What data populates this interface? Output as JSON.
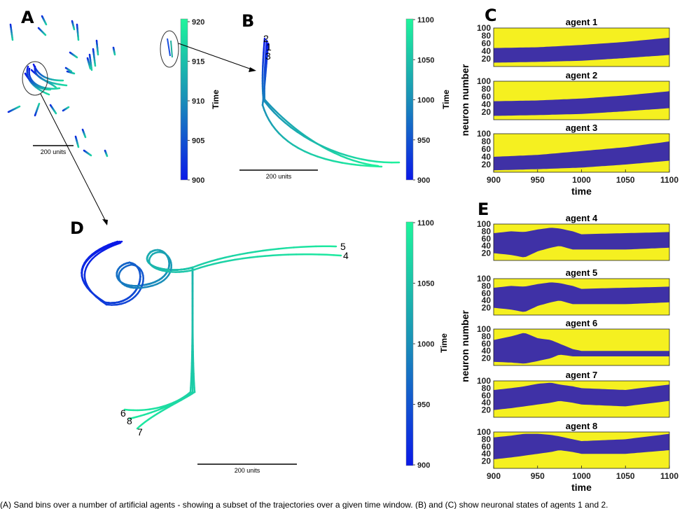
{
  "figure": {
    "panels": [
      "A",
      "B",
      "C",
      "D",
      "E"
    ],
    "caption_fragment": "(A) Sand bins over a number of artificial agents - showing a subset of the trajectories over a given time window. (B) and (C) show neuronal states of agents 1 and 2."
  },
  "colors": {
    "traj_low": "#0a18e8",
    "traj_mid": "#1a8fb8",
    "traj_high": "#1ef59c",
    "raster_on": "#f5f020",
    "raster_off": "#3f31a6"
  },
  "chart_data": [
    {
      "id": "A",
      "type": "line",
      "title": "",
      "scale_bar": "200 units",
      "colorbar": {
        "label": "Time",
        "ticks": [
          900,
          905,
          910,
          915,
          920
        ],
        "range": [
          900,
          920
        ]
      }
    },
    {
      "id": "B",
      "type": "line",
      "title": "",
      "scale_bar": "200 units",
      "agent_labels": [
        "2",
        "1",
        "3"
      ],
      "colorbar": {
        "label": "Time",
        "ticks": [
          900,
          950,
          1000,
          1050,
          1100
        ],
        "range": [
          900,
          1100
        ]
      }
    },
    {
      "id": "C",
      "type": "heatmap",
      "ylabel": "neuron number",
      "xlabel": "time",
      "xlim": [
        900,
        1100
      ],
      "ylim": [
        0,
        100
      ],
      "xticks": [
        900,
        950,
        1000,
        1050,
        1100
      ],
      "yticks": [
        20,
        40,
        60,
        80,
        100
      ],
      "series": [
        {
          "name": "agent 1",
          "band_time": [
            900,
            950,
            1000,
            1050,
            1100
          ],
          "band_lower": [
            10,
            12,
            15,
            22,
            30
          ],
          "band_upper": [
            48,
            50,
            56,
            64,
            75
          ]
        },
        {
          "name": "agent 2",
          "band_time": [
            900,
            950,
            1000,
            1050,
            1100
          ],
          "band_lower": [
            10,
            12,
            15,
            22,
            30
          ],
          "band_upper": [
            48,
            50,
            55,
            63,
            74
          ]
        },
        {
          "name": "agent 3",
          "band_time": [
            900,
            950,
            1000,
            1050,
            1100
          ],
          "band_lower": [
            5,
            8,
            12,
            20,
            30
          ],
          "band_upper": [
            40,
            45,
            55,
            65,
            80
          ]
        }
      ]
    },
    {
      "id": "D",
      "type": "line",
      "title": "",
      "scale_bar": "200 units",
      "agent_labels": [
        "5",
        "4",
        "6",
        "8",
        "7"
      ],
      "colorbar": {
        "label": "Time",
        "ticks": [
          900,
          950,
          1000,
          1050,
          1100
        ],
        "range": [
          900,
          1100
        ]
      }
    },
    {
      "id": "E",
      "type": "heatmap",
      "ylabel": "neuron number",
      "xlabel": "time",
      "xlim": [
        900,
        1100
      ],
      "ylim": [
        0,
        100
      ],
      "xticks": [
        900,
        950,
        1000,
        1050,
        1100
      ],
      "yticks": [
        20,
        40,
        60,
        80,
        100
      ],
      "series": [
        {
          "name": "agent 4",
          "band_time": [
            900,
            920,
            935,
            950,
            965,
            975,
            990,
            1000,
            1050,
            1100
          ],
          "band_lower": [
            20,
            15,
            8,
            25,
            35,
            40,
            30,
            30,
            30,
            35
          ],
          "band_upper": [
            75,
            80,
            78,
            85,
            90,
            88,
            80,
            72,
            75,
            78
          ]
        },
        {
          "name": "agent 5",
          "band_time": [
            900,
            920,
            935,
            950,
            965,
            975,
            990,
            1000,
            1050,
            1100
          ],
          "band_lower": [
            20,
            15,
            8,
            25,
            35,
            40,
            30,
            30,
            30,
            35
          ],
          "band_upper": [
            75,
            80,
            78,
            85,
            90,
            88,
            80,
            72,
            75,
            78
          ]
        },
        {
          "name": "agent 6",
          "band_time": [
            900,
            920,
            935,
            950,
            965,
            975,
            990,
            1000,
            1050,
            1100
          ],
          "band_lower": [
            10,
            8,
            5,
            12,
            20,
            30,
            25,
            25,
            25,
            25
          ],
          "band_upper": [
            70,
            80,
            90,
            75,
            70,
            60,
            45,
            40,
            40,
            40
          ]
        },
        {
          "name": "agent 7",
          "band_time": [
            900,
            920,
            935,
            950,
            965,
            975,
            990,
            1000,
            1050,
            1100
          ],
          "band_lower": [
            20,
            25,
            30,
            35,
            40,
            45,
            40,
            35,
            30,
            45
          ],
          "band_upper": [
            75,
            80,
            85,
            92,
            95,
            90,
            85,
            80,
            75,
            90
          ]
        },
        {
          "name": "agent 8",
          "band_time": [
            900,
            920,
            935,
            950,
            965,
            975,
            990,
            1000,
            1050,
            1100
          ],
          "band_lower": [
            25,
            30,
            35,
            40,
            45,
            50,
            45,
            40,
            40,
            50
          ],
          "band_upper": [
            85,
            90,
            95,
            95,
            92,
            88,
            80,
            75,
            80,
            95
          ]
        }
      ]
    }
  ]
}
